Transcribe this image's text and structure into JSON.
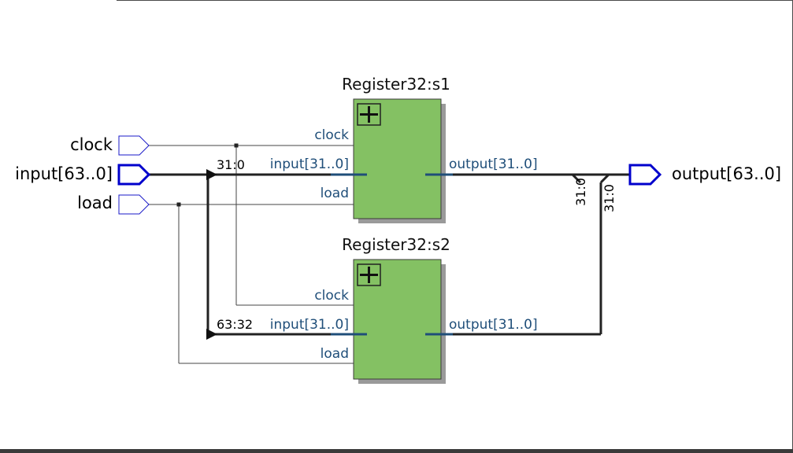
{
  "diagram": {
    "inputs": [
      {
        "name": "clock",
        "bus": false
      },
      {
        "name": "input[63..0]",
        "bus": true
      },
      {
        "name": "load",
        "bus": false
      }
    ],
    "outputs": [
      {
        "name": "output[63..0]",
        "bus": true
      }
    ],
    "blocks": [
      {
        "title": "Register32:s1",
        "ports_in": [
          "clock",
          "input[31..0]",
          "load"
        ],
        "port_out": "output[31..0]",
        "expand_icon": "plus-icon"
      },
      {
        "title": "Register32:s2",
        "ports_in": [
          "clock",
          "input[31..0]",
          "load"
        ],
        "port_out": "output[31..0]",
        "expand_icon": "plus-icon"
      }
    ],
    "bus_labels": {
      "split_top": "31:0",
      "split_bottom": "63:32",
      "merge_left": "31:0",
      "merge_right": "31:0"
    },
    "colors": {
      "block_fill": "#84c163",
      "block_shadow": "#9a9a9a",
      "wire": "#222222",
      "pin_thin": "#1a1ac8",
      "pin_bus": "#0000cc",
      "port_text": "#1f4e79"
    }
  }
}
